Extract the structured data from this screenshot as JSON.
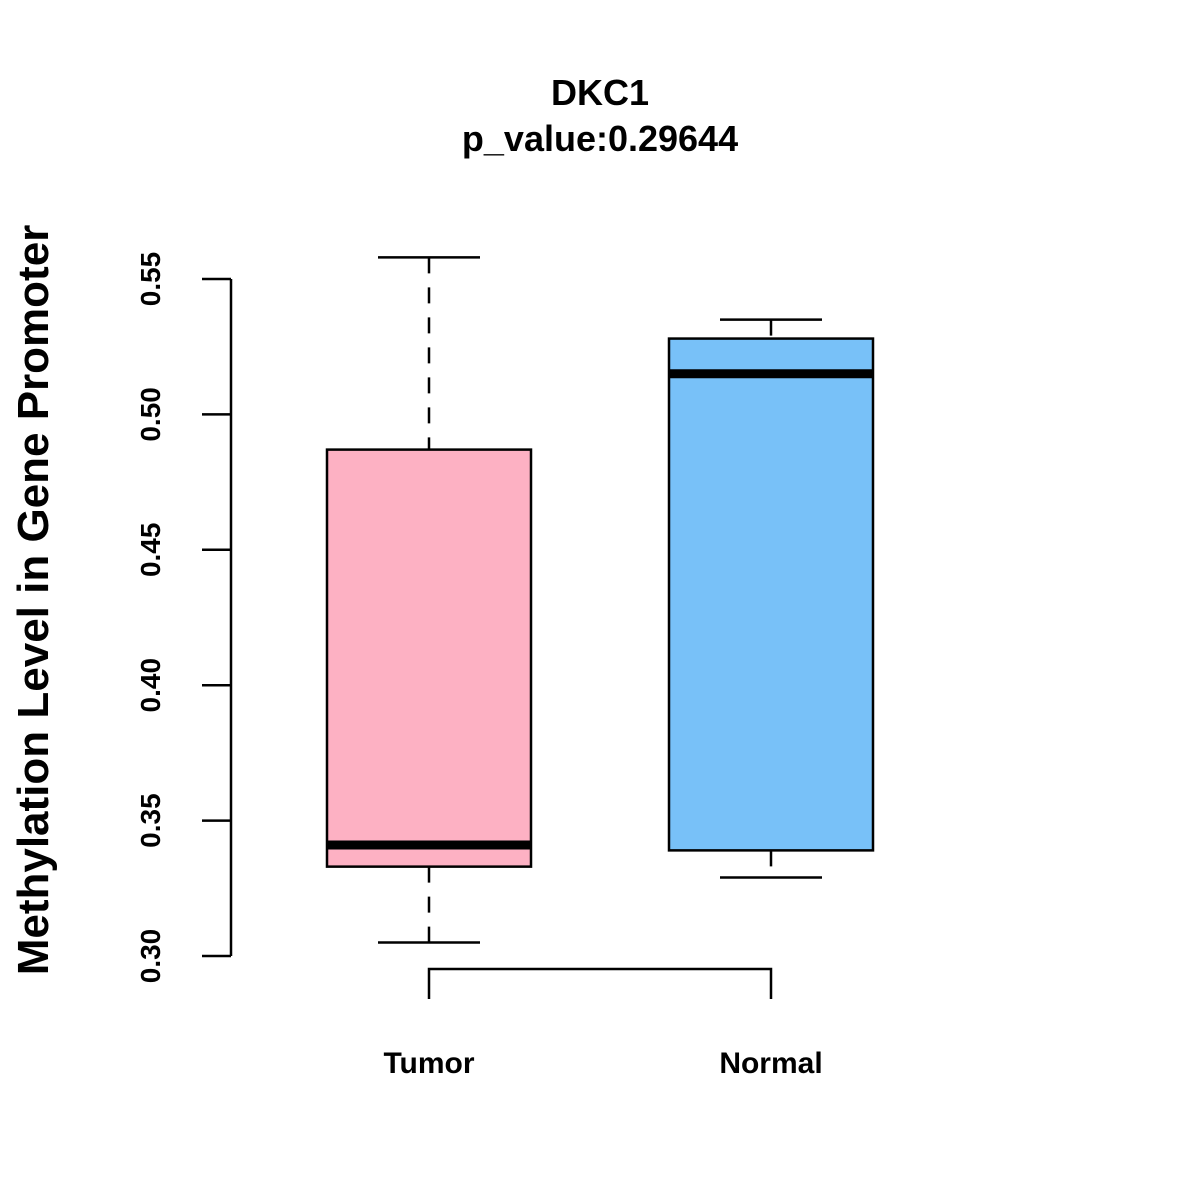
{
  "chart_data": {
    "type": "boxplot",
    "title": "DKC1",
    "subtitle": "p_value:0.29644",
    "xlabel": "",
    "ylabel": "Methylation Level in Gene Promoter",
    "ylim": [
      0.3,
      0.55
    ],
    "yticks": [
      0.3,
      0.35,
      0.4,
      0.45,
      0.5,
      0.55
    ],
    "ytick_labels": [
      "0.30",
      "0.35",
      "0.40",
      "0.45",
      "0.50",
      "0.55"
    ],
    "categories": [
      "Tumor",
      "Normal"
    ],
    "boxes": [
      {
        "name": "Tumor",
        "whisker_low": 0.305,
        "q1": 0.333,
        "median": 0.341,
        "q3": 0.487,
        "whisker_high": 0.558,
        "color": "#FDB1C3"
      },
      {
        "name": "Normal",
        "whisker_low": 0.329,
        "q1": 0.339,
        "median": 0.515,
        "q3": 0.528,
        "whisker_high": 0.535,
        "color": "#78C1F8"
      }
    ],
    "comparison_bracket": {
      "between": [
        "Tumor",
        "Normal"
      ]
    },
    "grid": false
  }
}
